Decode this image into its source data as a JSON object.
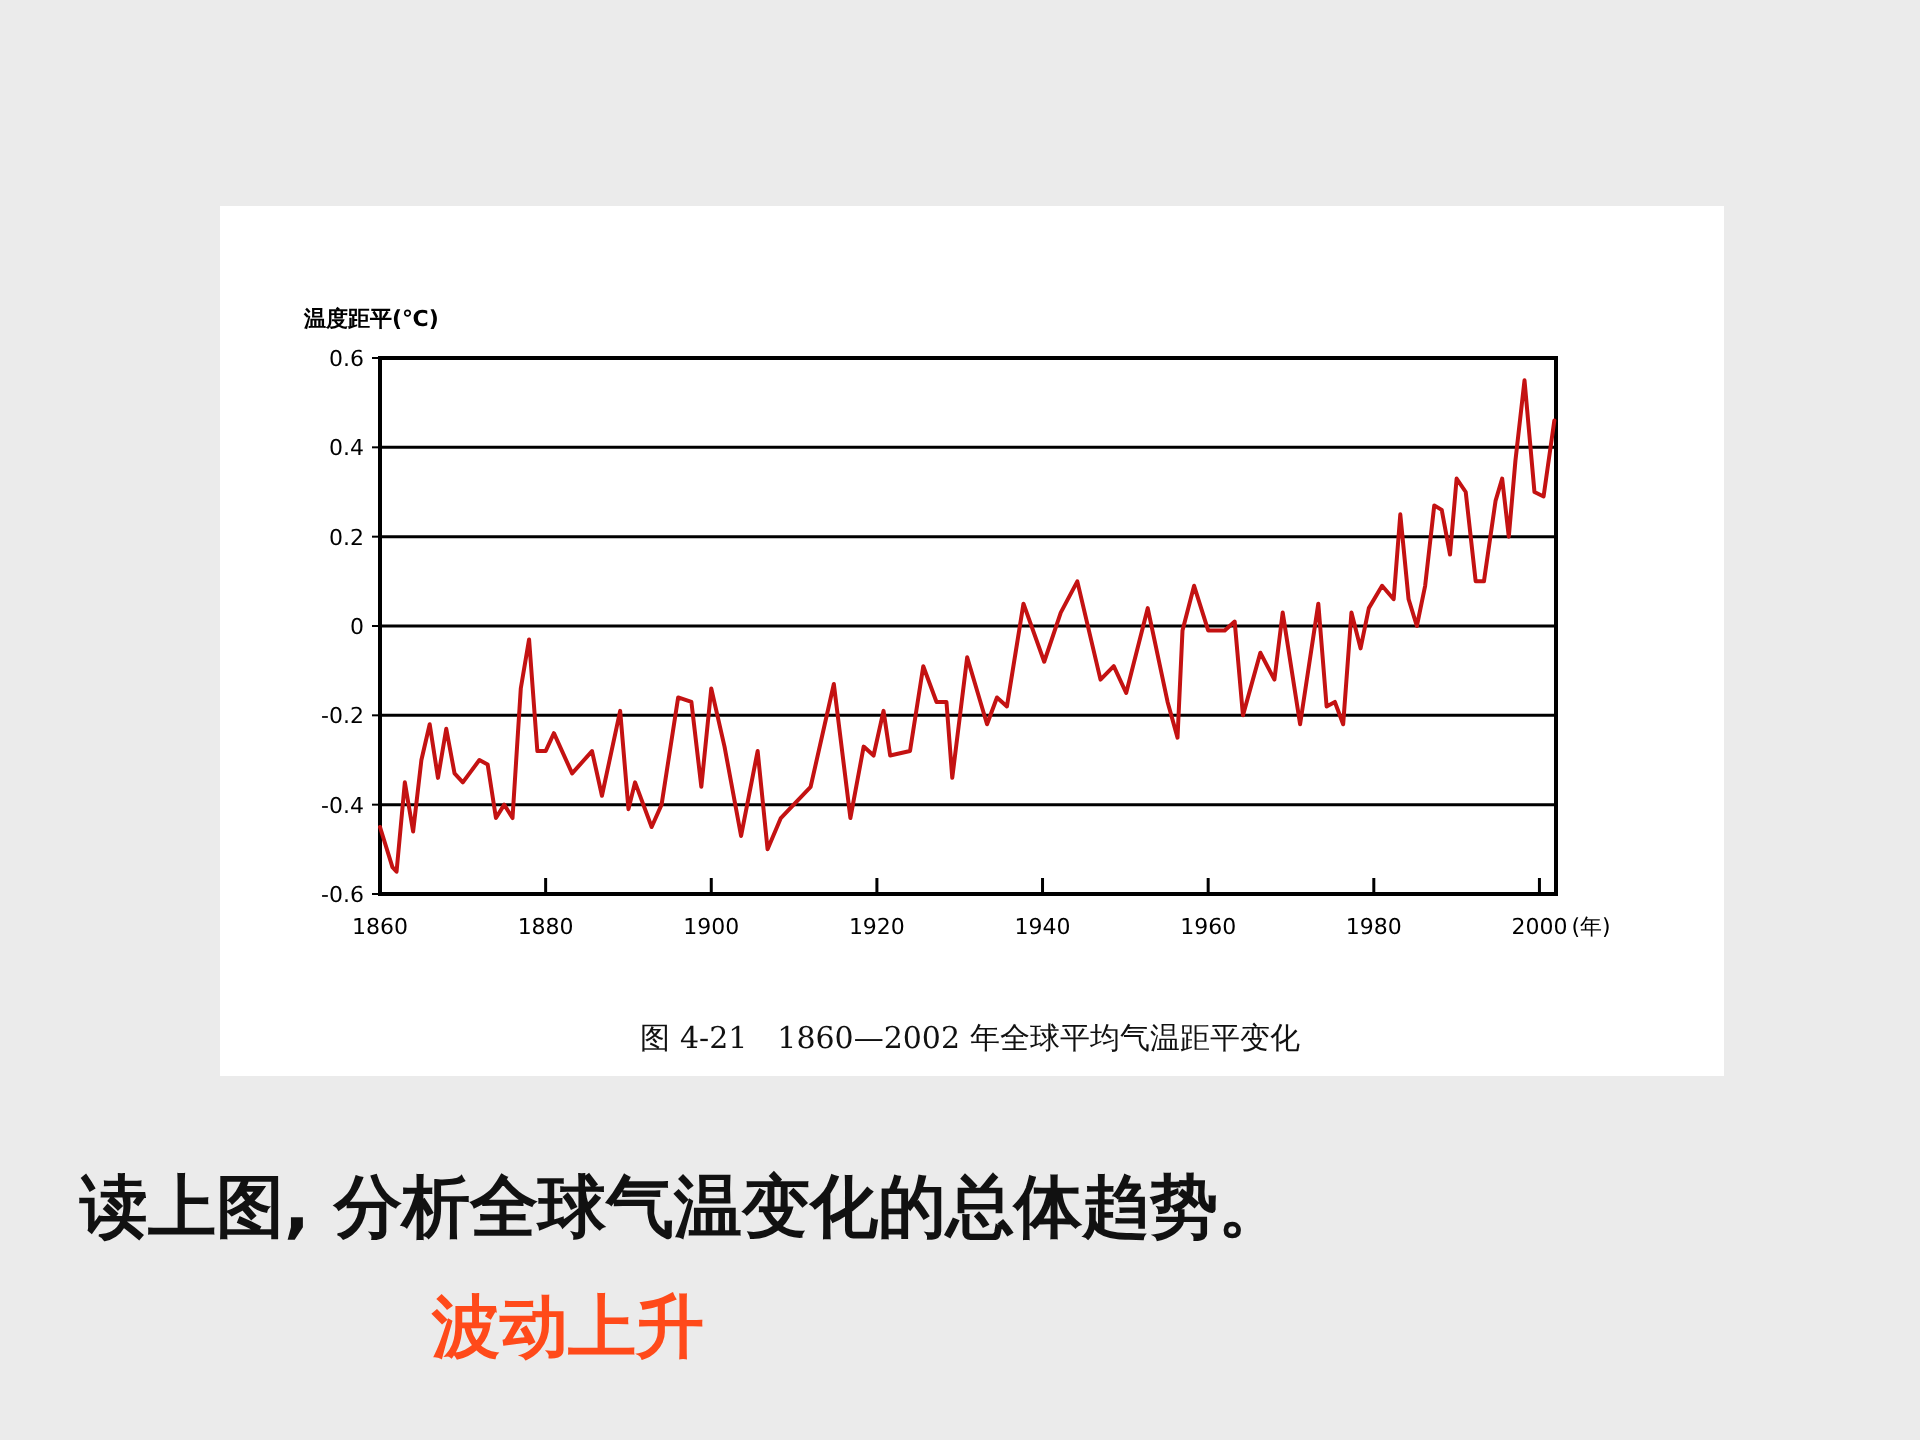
{
  "chart_data": {
    "type": "line",
    "xlabel": "(年)",
    "ylabel": "温度距平(℃)",
    "annotations": [
      "图 4-21　1860—2002 年全球平均气温距平变化",
      "读上图, 分析全球气温变化的总体趋势。",
      "波动上升"
    ],
    "series": [
      {
        "color": "#c41212",
        "x": [
          1860,
          1861.5,
          1862,
          1863,
          1864,
          1865,
          1866,
          1867,
          1868,
          1869,
          1870,
          1872,
          1873,
          1874,
          1875,
          1876,
          1877,
          1878,
          1879,
          1880,
          1881,
          1883.2,
          1885.6,
          1886.8,
          1889,
          1890,
          1890.8,
          1892.8,
          1894,
          1896,
          1897.6,
          1898.8,
          1900,
          1901.6,
          1903.6,
          1905.6,
          1906.8,
          1908.4,
          1912,
          1914.8,
          1916.8,
          1918.4,
          1919.6,
          1920.8,
          1921.6,
          1924,
          1925.6,
          1927.2,
          1928.4,
          1929.1,
          1930.9,
          1933.3,
          1934.5,
          1935.7,
          1937.7,
          1940.2,
          1942.2,
          1944.2,
          1947,
          1948.6,
          1950.1,
          1952.7,
          1955.1,
          1956.3,
          1956.9,
          1958.3,
          1960,
          1962,
          1963.2,
          1964.2,
          1966.3,
          1968,
          1969,
          1971.1,
          1973.3,
          1974.3,
          1975.3,
          1976.3,
          1977.3,
          1978.4,
          1979.4,
          1981,
          1982.4,
          1983.2,
          1984.2,
          1985.2,
          1986.2,
          1987.3,
          1988.2,
          1989.2,
          1990,
          1991.1,
          1992.3,
          1993.3,
          1994.7,
          1995.5,
          1996.3,
          1997.1,
          1998.2,
          1999.4,
          2000.5,
          2001.8
        ],
        "values": [
          -0.45,
          -0.54,
          -0.55,
          -0.35,
          -0.46,
          -0.3,
          -0.22,
          -0.34,
          -0.23,
          -0.33,
          -0.35,
          -0.3,
          -0.31,
          -0.43,
          -0.4,
          -0.43,
          -0.14,
          -0.03,
          -0.28,
          -0.28,
          -0.24,
          -0.33,
          -0.28,
          -0.38,
          -0.19,
          -0.41,
          -0.35,
          -0.45,
          -0.4,
          -0.16,
          -0.17,
          -0.36,
          -0.14,
          -0.27,
          -0.47,
          -0.28,
          -0.5,
          -0.43,
          -0.36,
          -0.13,
          -0.43,
          -0.27,
          -0.29,
          -0.19,
          -0.29,
          -0.28,
          -0.09,
          -0.17,
          -0.17,
          -0.34,
          -0.07,
          -0.22,
          -0.16,
          -0.18,
          0.05,
          -0.08,
          0.03,
          0.1,
          -0.12,
          -0.09,
          -0.15,
          0.04,
          -0.17,
          -0.25,
          -0.01,
          0.09,
          -0.01,
          -0.01,
          0.01,
          -0.2,
          -0.06,
          -0.12,
          0.03,
          -0.22,
          0.05,
          -0.18,
          -0.17,
          -0.22,
          0.03,
          -0.05,
          0.04,
          0.09,
          0.06,
          0.25,
          0.06,
          0.0,
          0.09,
          0.27,
          0.26,
          0.16,
          0.33,
          0.3,
          0.1,
          0.1,
          0.28,
          0.33,
          0.2,
          0.37,
          0.55,
          0.3,
          0.29,
          0.46
        ]
      }
    ],
    "xlim": [
      1860,
      2002
    ],
    "xticks": [
      1860,
      1880,
      1900,
      1920,
      1940,
      1960,
      1980,
      2000
    ],
    "ylim": [
      -0.6,
      0.6
    ],
    "yticks": [
      -0.6,
      -0.4,
      -0.2,
      0,
      0.2,
      0.4,
      0.6
    ],
    "grid": "y"
  }
}
